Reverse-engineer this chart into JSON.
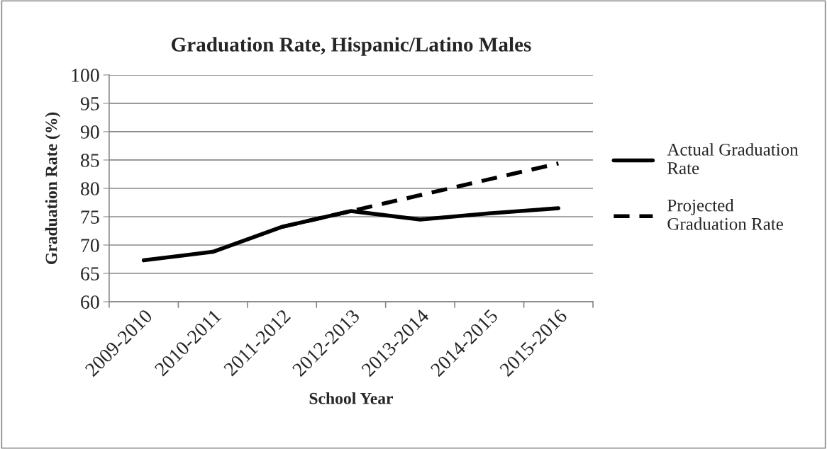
{
  "chart_data": {
    "type": "line",
    "title": "Graduation Rate, Hispanic/Latino Males",
    "xlabel": "School Year",
    "ylabel": "Graduation Rate (%)",
    "categories": [
      "2009-2010",
      "2010-2011",
      "2011-2012",
      "2012-2013",
      "2013-2014",
      "2014-2015",
      "2015-2016"
    ],
    "series": [
      {
        "name": "Actual Graduation Rate",
        "color": "#000000",
        "line_style": "solid",
        "values": [
          67.3,
          68.8,
          73.2,
          76.0,
          74.5,
          75.6,
          76.5
        ]
      },
      {
        "name": "Projected Graduation Rate",
        "color": "#000000",
        "line_style": "dashed",
        "values": [
          null,
          null,
          73.2,
          76.0,
          78.8,
          81.6,
          84.4
        ]
      }
    ],
    "ylim": [
      60,
      100
    ],
    "yticks": [
      60,
      65,
      70,
      75,
      80,
      85,
      90,
      95,
      100
    ],
    "grid": "y",
    "legend": "right",
    "marker": "none"
  }
}
